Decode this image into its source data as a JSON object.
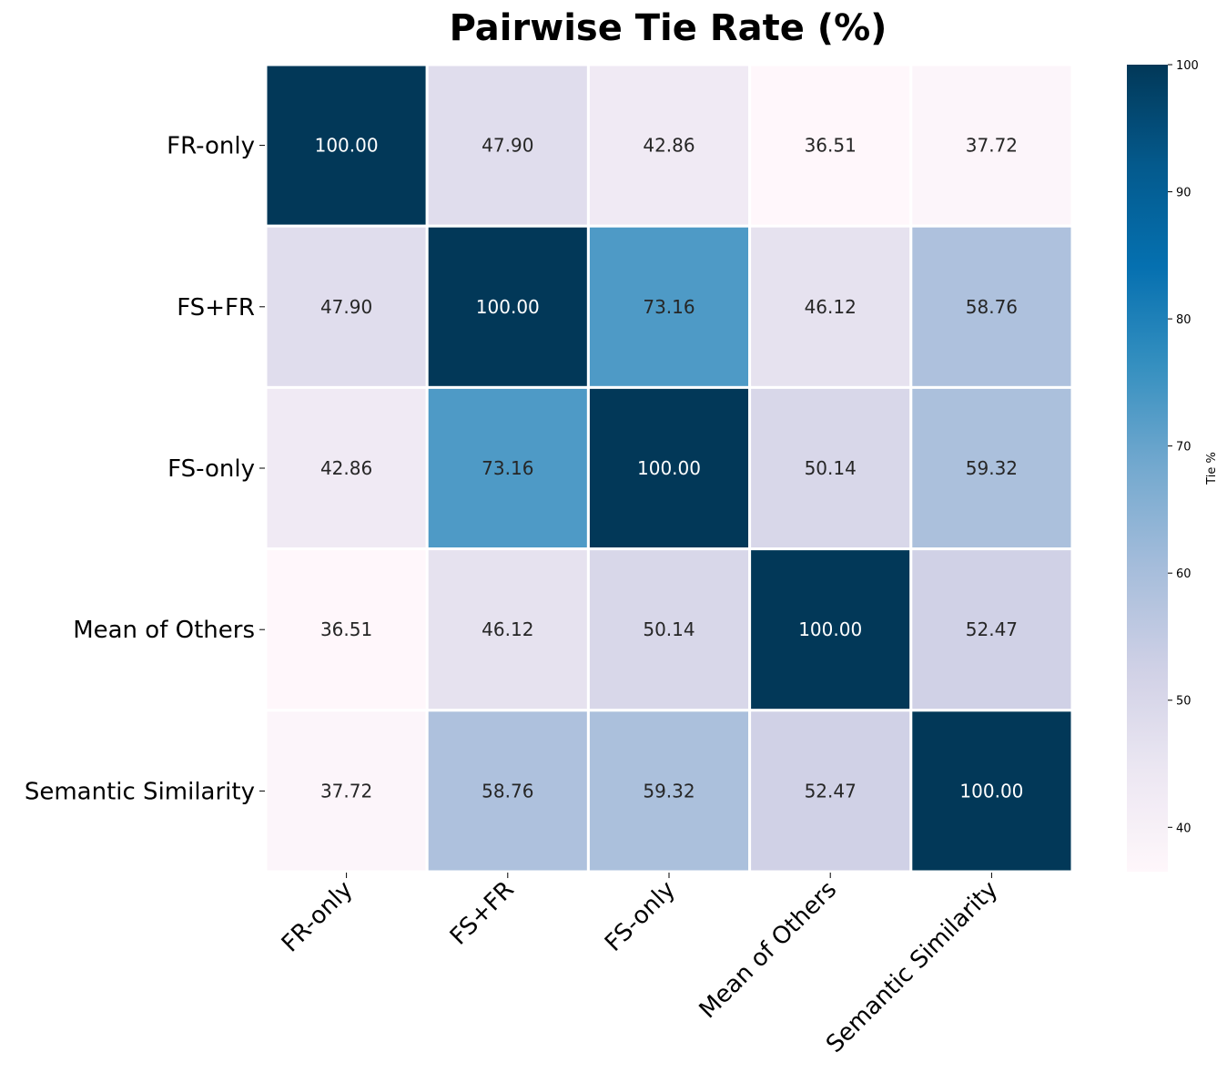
{
  "chart_data": {
    "type": "heatmap",
    "title": "Pairwise Tie Rate (%)",
    "rows": [
      "FR-only",
      "FS+FR",
      "FS-only",
      "Mean of Others",
      "Semantic Similarity"
    ],
    "columns": [
      "FR-only",
      "FS+FR",
      "FS-only",
      "Mean of Others",
      "Semantic Similarity"
    ],
    "values": [
      [
        100.0,
        47.9,
        42.86,
        36.51,
        37.72
      ],
      [
        47.9,
        100.0,
        73.16,
        46.12,
        58.76
      ],
      [
        42.86,
        73.16,
        100.0,
        50.14,
        59.32
      ],
      [
        36.51,
        46.12,
        50.14,
        100.0,
        52.47
      ],
      [
        37.72,
        58.76,
        59.32,
        52.47,
        100.0
      ]
    ],
    "colorbar": {
      "label": "Tie %",
      "range": [
        36.51,
        100
      ],
      "ticks": [
        40,
        50,
        60,
        70,
        80,
        90,
        100
      ],
      "colormap": "PuBu",
      "colormap_stops": [
        "#fff7fb",
        "#ece7f2",
        "#d0d1e6",
        "#a6bddb",
        "#74a9cf",
        "#3690c0",
        "#0570b0",
        "#045a8d",
        "#023858"
      ]
    },
    "value_format_decimals": 2,
    "cell_border_color": "#ffffff"
  }
}
